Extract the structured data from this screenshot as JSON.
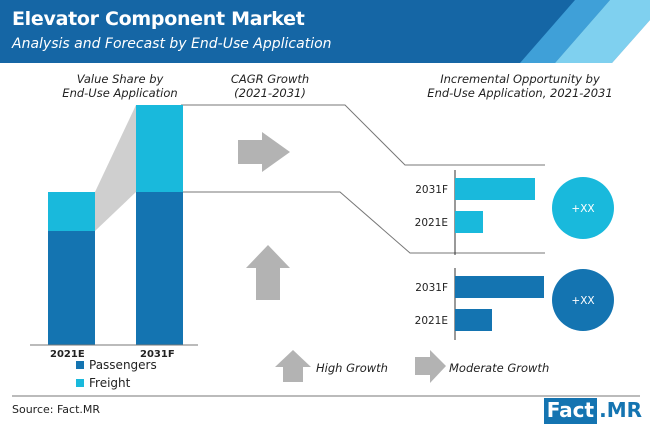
{
  "header": {
    "title": "Elevator Component Market",
    "subtitle": "Analysis and Forecast by End-Use Application"
  },
  "sections": {
    "value_share": [
      "Value Share by",
      "End-Use Application"
    ],
    "cagr": [
      "CAGR Growth",
      "(2021-2031)"
    ],
    "incremental": [
      "Incremental Opportunity by",
      "End-Use Application, 2021-2031"
    ]
  },
  "colors": {
    "header": "#1566a5",
    "passengers": "#1474b1",
    "freight": "#19b9dc",
    "arrow": "#b3b3b3",
    "connector": "#cfcfcf"
  },
  "chart_data": [
    {
      "type": "bar",
      "stacked": true,
      "title": "Value Share by End-Use Application",
      "categories": [
        "2021E",
        "2031F"
      ],
      "series": [
        {
          "name": "Passengers",
          "values": [
            114,
            153
          ]
        },
        {
          "name": "Freight",
          "values": [
            39,
            87
          ]
        }
      ]
    },
    {
      "type": "bar",
      "orientation": "horizontal",
      "title": "Incremental Opportunity - Freight",
      "categories": [
        "2031F",
        "2021E"
      ],
      "values": [
        80,
        28
      ],
      "badge": "+XX",
      "color": "#19b9dc"
    },
    {
      "type": "bar",
      "orientation": "horizontal",
      "title": "Incremental Opportunity - Passengers",
      "categories": [
        "2031F",
        "2021E"
      ],
      "values": [
        89,
        37
      ],
      "badge": "+XX",
      "color": "#1474b1"
    }
  ],
  "growth_legend": {
    "high": "High Growth",
    "moderate": "Moderate Growth"
  },
  "footer": {
    "source": "Source: Fact.MR",
    "logo_a": "Fact",
    "logo_b": ".MR"
  }
}
